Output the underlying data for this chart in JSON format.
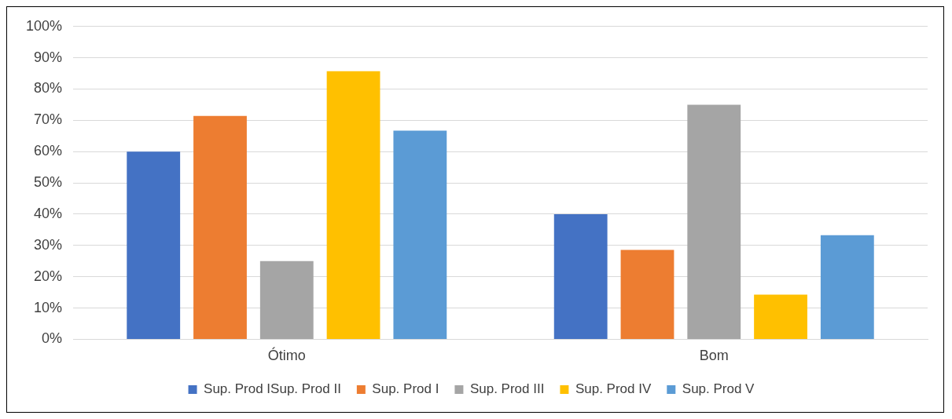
{
  "chart_data": {
    "type": "bar",
    "categories": [
      "Ótimo",
      "Bom"
    ],
    "series": [
      {
        "name": "Sup. Prod ISup. Prod II",
        "color": "#4472c4",
        "values": [
          60,
          40
        ]
      },
      {
        "name": "Sup. Prod I",
        "color": "#ed7d31",
        "values": [
          71.4,
          28.6
        ]
      },
      {
        "name": "Sup. Prod III",
        "color": "#a5a5a5",
        "values": [
          25,
          75
        ]
      },
      {
        "name": "Sup. Prod IV",
        "color": "#ffc000",
        "values": [
          85.7,
          14.3
        ]
      },
      {
        "name": "Sup. Prod V",
        "color": "#5b9bd5",
        "values": [
          66.7,
          33.3
        ]
      }
    ],
    "ylim": [
      0,
      100
    ],
    "yticks": [
      {
        "value": 0,
        "label": "0%"
      },
      {
        "value": 10,
        "label": "10%"
      },
      {
        "value": 20,
        "label": "20%"
      },
      {
        "value": 30,
        "label": "30%"
      },
      {
        "value": 40,
        "label": "40%"
      },
      {
        "value": 50,
        "label": "50%"
      },
      {
        "value": 60,
        "label": "60%"
      },
      {
        "value": 70,
        "label": "70%"
      },
      {
        "value": 80,
        "label": "80%"
      },
      {
        "value": 90,
        "label": "90%"
      },
      {
        "value": 100,
        "label": "100%"
      }
    ],
    "grid": "y",
    "legend": "bottom"
  }
}
